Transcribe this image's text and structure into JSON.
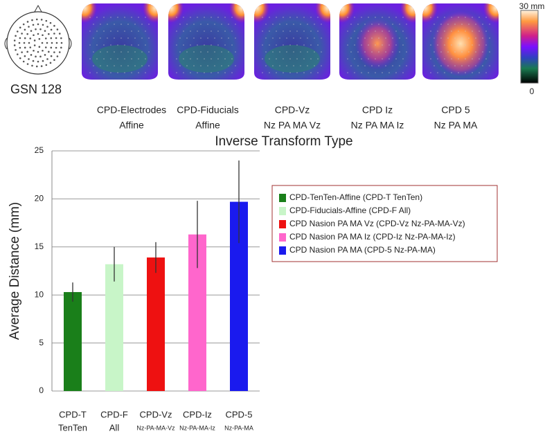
{
  "figure": {
    "head_label": "GSN 128",
    "maps": [
      {
        "line1": "CPD-Electrodes",
        "line2": "Affine"
      },
      {
        "line1": "CPD-Fiducials",
        "line2": "Affine"
      },
      {
        "line1": "CPD-Vz",
        "line2": "Nz PA MA Vz"
      },
      {
        "line1": "CPD Iz",
        "line2": "Nz PA MA Iz"
      },
      {
        "line1": "CPD 5",
        "line2": "Nz PA MA"
      }
    ],
    "colorbar_max_label": "30 mm",
    "colorbar_min_label": "0"
  },
  "chart_data": {
    "type": "bar",
    "title": "Inverse Transform Type",
    "y_label": "Average Distance (mm)",
    "categories": [
      "CPD-T",
      "CPD-F",
      "CPD-Vz",
      "CPD-Iz",
      "CPD-5"
    ],
    "category_sublabels": [
      "TenTen",
      "All",
      "Nz-PA-MA-Vz",
      "Nz-PA-MA-Iz",
      "Nz-PA-MA"
    ],
    "values": [
      10.3,
      13.2,
      13.9,
      16.3,
      19.7
    ],
    "errors": [
      1.0,
      1.8,
      1.6,
      3.5,
      4.3
    ],
    "colors": [
      "#1a7f1a",
      "#c8f5c8",
      "#ee1111",
      "#ff66cc",
      "#1a1aee"
    ],
    "legend_labels": [
      "CPD-TenTen-Affine (CPD-T TenTen)",
      "CPD-Fiducials-Affine (CPD-F All)",
      "CPD Nasion PA MA Vz (CPD-Vz  Nz-PA-MA-Vz)",
      "CPD Nasion PA MA Iz (CPD-Iz Nz-PA-MA-Iz)",
      "CPD Nasion PA MA (CPD-5 Nz-PA-MA)"
    ],
    "ylim": [
      0,
      25
    ],
    "yticks": [
      0,
      5,
      10,
      15,
      20,
      25
    ],
    "grid": true
  }
}
